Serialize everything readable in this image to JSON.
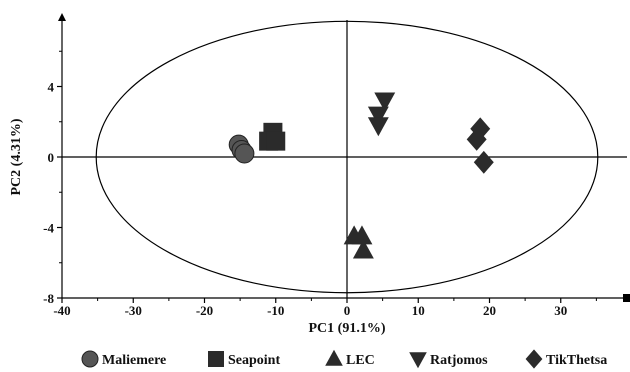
{
  "chart_data": {
    "type": "scatter",
    "title": "",
    "xlabel": "PC1 (91.1%)",
    "ylabel": "PC2 (4.31%)",
    "xlim": [
      -40,
      40
    ],
    "ylim": [
      -8,
      8
    ],
    "x_ticks": [
      -40,
      -30,
      -20,
      -10,
      0,
      10,
      20,
      30
    ],
    "y_ticks": [
      -8,
      -4,
      0,
      4
    ],
    "grid": false,
    "legend_position": "bottom",
    "confidence_ellipse": {
      "center": [
        0,
        0
      ],
      "semi_axis_x": 35.2,
      "semi_axis_y": 7.7
    },
    "series": [
      {
        "name": "Maliemere",
        "marker": "circle",
        "color": "#555555",
        "points": [
          [
            -15.2,
            0.7
          ],
          [
            -14.8,
            0.4
          ],
          [
            -14.4,
            0.2
          ]
        ]
      },
      {
        "name": "Seapoint",
        "marker": "square",
        "color": "#2b2b2b",
        "points": [
          [
            -10.4,
            1.4
          ],
          [
            -11.0,
            0.9
          ],
          [
            -10.0,
            0.9
          ]
        ]
      },
      {
        "name": "LEC",
        "marker": "triangle-up",
        "color": "#2b2b2b",
        "points": [
          [
            1.0,
            -4.5
          ],
          [
            2.1,
            -4.5
          ],
          [
            2.3,
            -5.3
          ]
        ]
      },
      {
        "name": "Ratjomos",
        "marker": "triangle-down",
        "color": "#2b2b2b",
        "points": [
          [
            5.3,
            3.2
          ],
          [
            4.4,
            2.4
          ],
          [
            4.4,
            1.8
          ]
        ]
      },
      {
        "name": "TikThetsa",
        "marker": "diamond",
        "color": "#2b2b2b",
        "points": [
          [
            18.7,
            1.6
          ],
          [
            18.2,
            1.0
          ],
          [
            19.2,
            -0.3
          ]
        ]
      }
    ]
  }
}
